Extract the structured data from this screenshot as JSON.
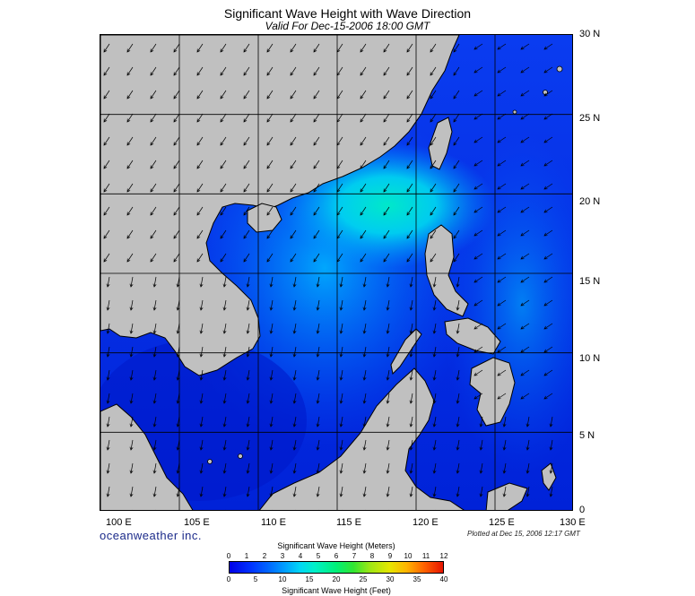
{
  "title": "Significant Wave Height with Wave Direction",
  "subtitle": "Valid For Dec-15-2006 18:00 GMT",
  "lat_labels": [
    "30 N",
    "25 N",
    "20 N",
    "15 N",
    "10 N",
    "5 N",
    "0"
  ],
  "lon_labels": [
    "100 E",
    "105 E",
    "110 E",
    "115 E",
    "120 E",
    "125 E",
    "130 E"
  ],
  "brand": "oceanweather inc.",
  "plotted": "Plotted at Dec 15, 2006 12:17 GMT",
  "colorbar": {
    "title_top": "Significant Wave Height (Meters)",
    "title_bottom": "Significant Wave Height (Feet)",
    "meters_ticks": [
      "0",
      "1",
      "2",
      "3",
      "4",
      "5",
      "6",
      "7",
      "8",
      "9",
      "10",
      "11",
      "12"
    ],
    "feet_ticks": [
      "0",
      "5",
      "10",
      "15",
      "20",
      "25",
      "30",
      "35",
      "40"
    ]
  },
  "colors": {
    "land": "#c0c0c0",
    "sea_deep": "#0018c8",
    "sea_mid": "#0060ff",
    "sea_high": "#00c8ff",
    "peak": "#00f0c8",
    "arrow": "#000000",
    "grid": "#000000"
  },
  "map_extent": {
    "lon_min": 100,
    "lon_max": 130,
    "lat_min": 0,
    "lat_max": 30
  }
}
